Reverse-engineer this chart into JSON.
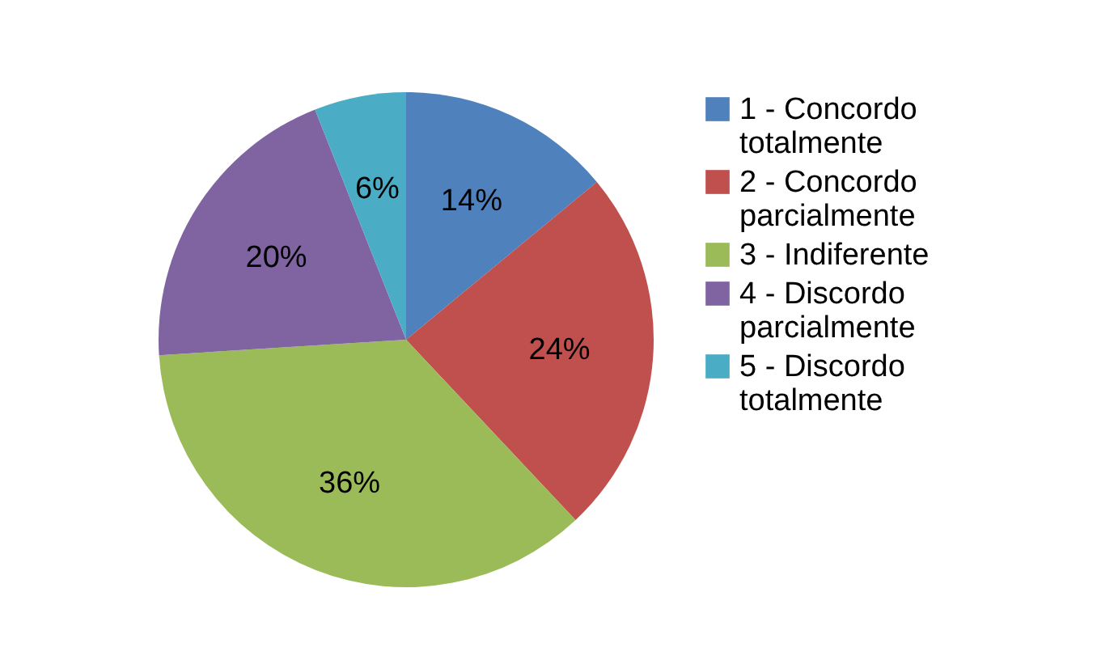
{
  "chart_data": {
    "type": "pie",
    "categories": [
      "1 - Concordo totalmente",
      "2 - Concordo parcialmente",
      "3 - Indiferente",
      "4 - Discordo parcialmente",
      "5 - Discordo totalmente"
    ],
    "values": [
      14,
      24,
      36,
      20,
      6
    ],
    "colors": [
      "#4f81bd",
      "#c0504d",
      "#9bbb59",
      "#8064a2",
      "#4bacc6"
    ],
    "value_labels": [
      "14%",
      "24%",
      "36%",
      "20%",
      "6%"
    ],
    "legend": "right"
  }
}
